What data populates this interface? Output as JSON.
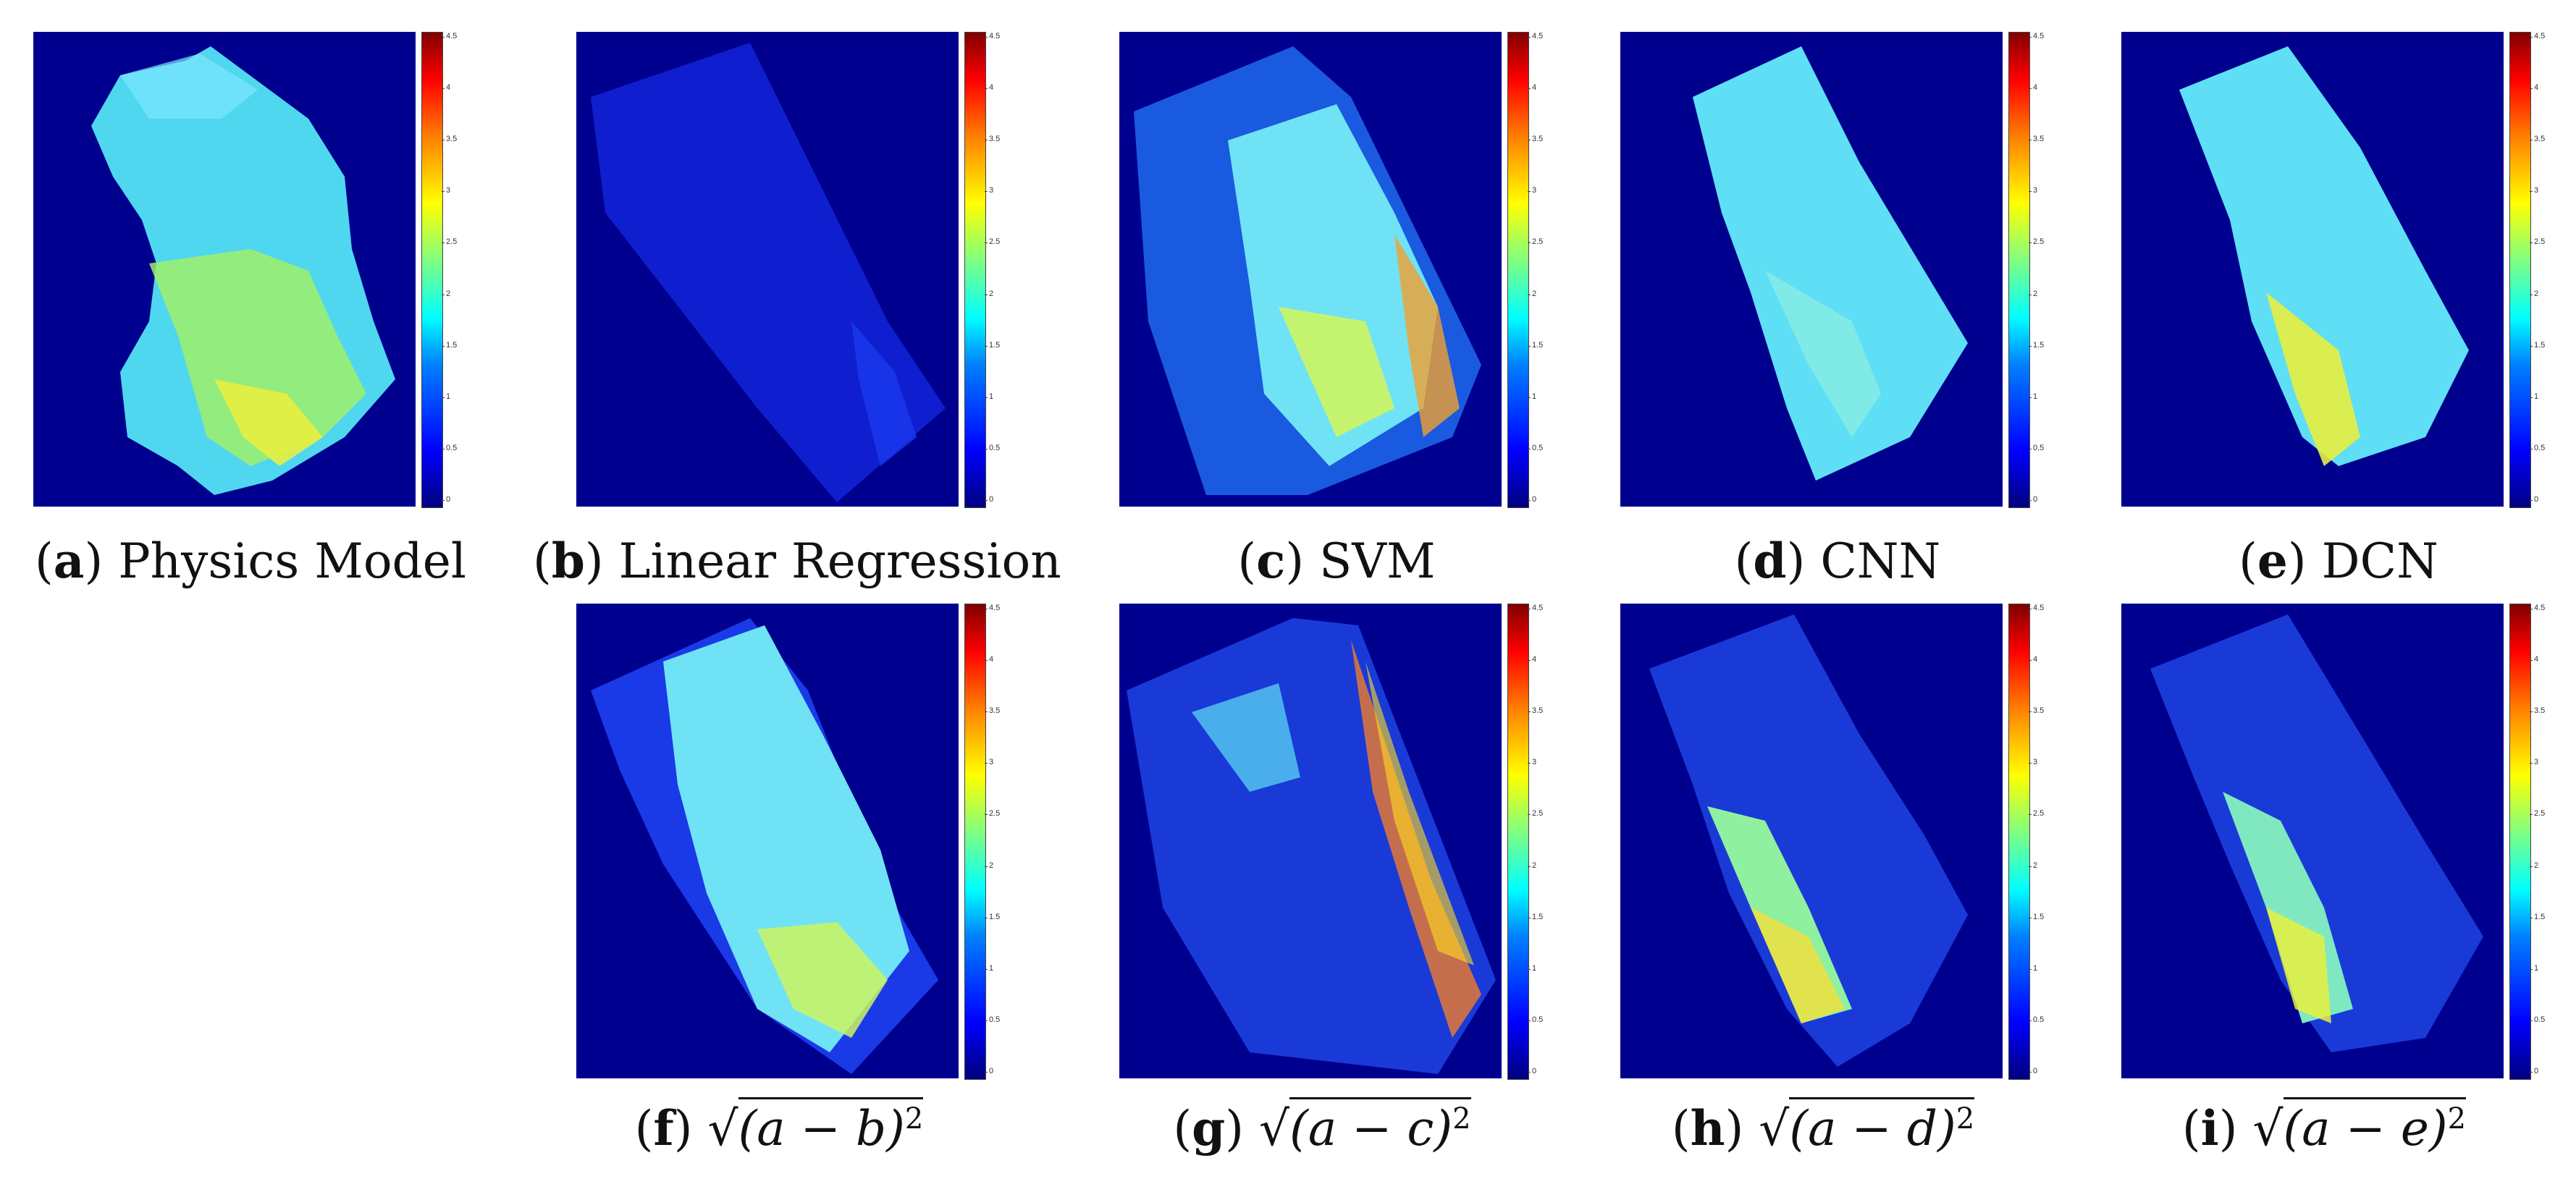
{
  "colorbar": {
    "ticks": [
      "4.5",
      "4",
      "3.5",
      "3",
      "2.5",
      "2",
      "1.5",
      "1",
      "0.5",
      "0"
    ],
    "colormap": "jet",
    "background_color": "#00008f"
  },
  "panels": [
    {
      "letter": "a",
      "title": "Physics Model",
      "fill": "mixed-yellow"
    },
    {
      "letter": "b",
      "title": "Linear Regression",
      "fill": "dark-blue"
    },
    {
      "letter": "c",
      "title": "SVM",
      "fill": "cyan-yellow"
    },
    {
      "letter": "d",
      "title": "CNN",
      "fill": "cyan"
    },
    {
      "letter": "e",
      "title": "DCN",
      "fill": "cyan-yellow"
    },
    {
      "letter": "f",
      "expr_inner": "(a − b)",
      "exponent": "2",
      "fill": "cyan-yellow"
    },
    {
      "letter": "g",
      "expr_inner": "(a − c)",
      "exponent": "2",
      "fill": "blue-noise"
    },
    {
      "letter": "h",
      "expr_inner": "(a − d)",
      "exponent": "2",
      "fill": "blue-yellow"
    },
    {
      "letter": "i",
      "expr_inner": "(a − e)",
      "exponent": "2",
      "fill": "blue-yellow"
    }
  ]
}
